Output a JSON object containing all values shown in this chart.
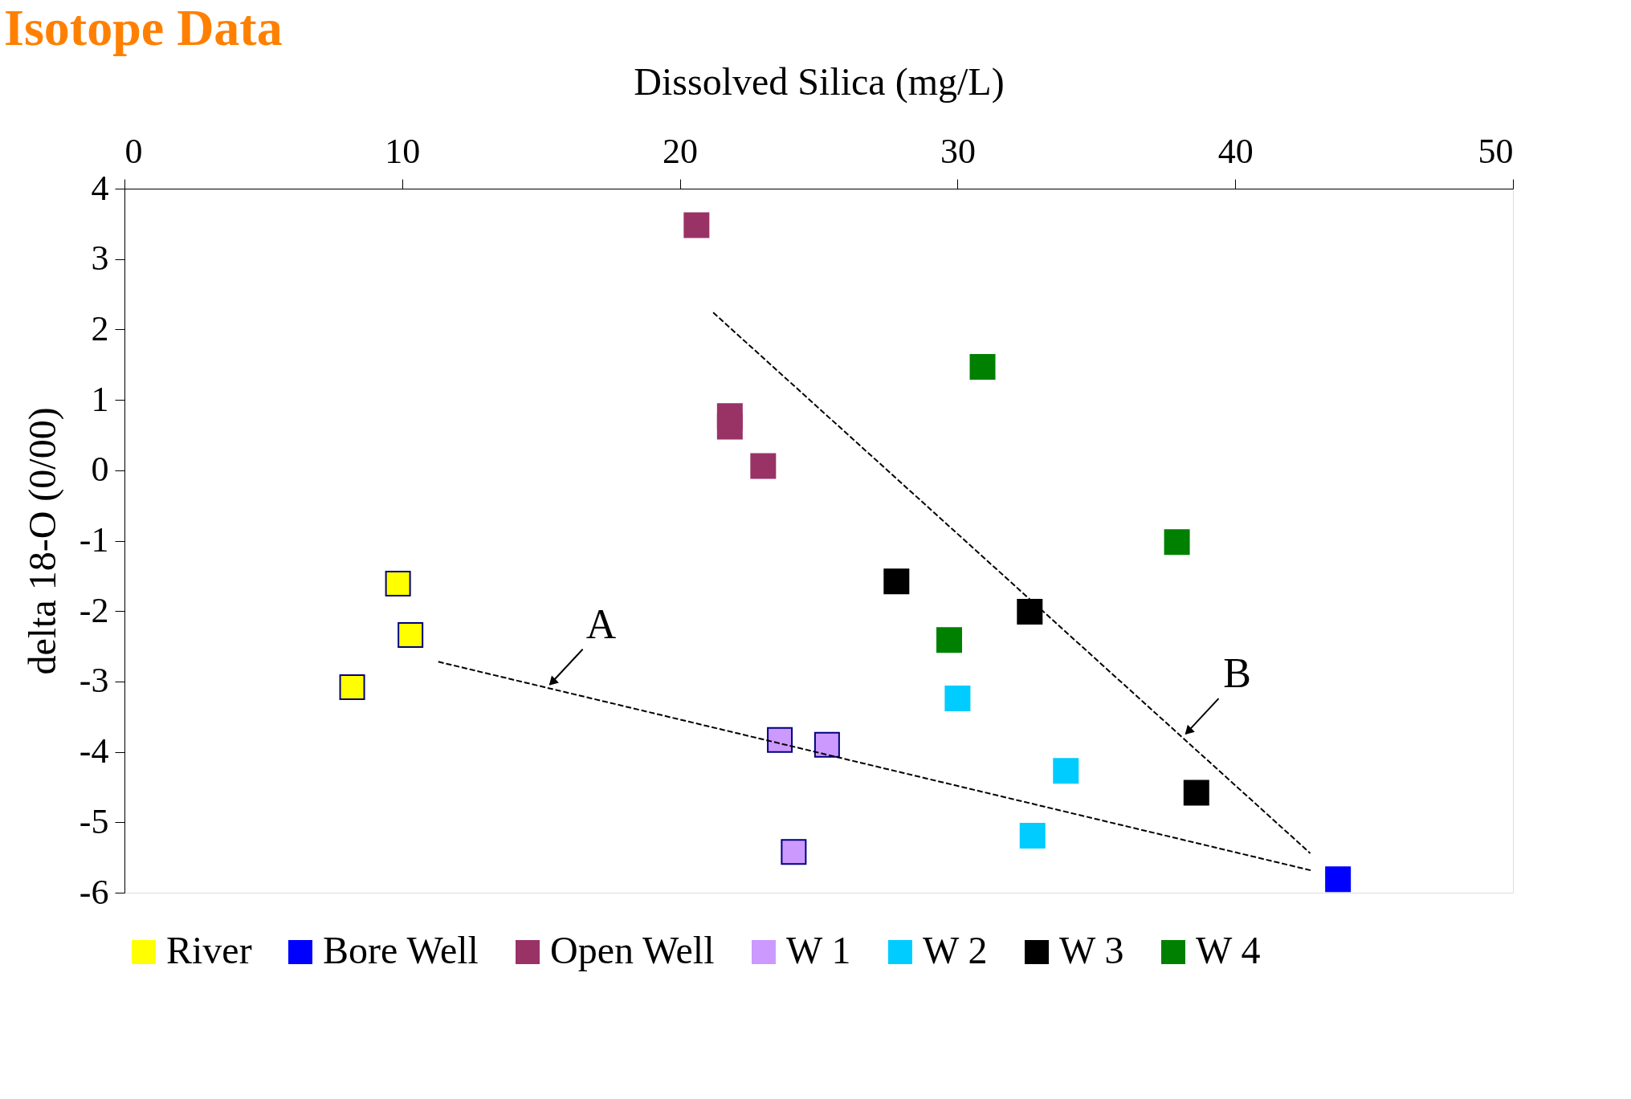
{
  "chart_data": {
    "type": "scatter",
    "title": "Isotope Data",
    "xlabel": "Dissolved Silica (mg/L)",
    "ylabel": "delta 18-O (0/00)",
    "xlim": [
      0,
      50
    ],
    "xticks": [
      0,
      10,
      20,
      30,
      40,
      50
    ],
    "ylim": [
      -6,
      4
    ],
    "yticks": [
      -6,
      -5,
      -4,
      -3,
      -2,
      -1,
      0,
      1,
      2,
      3,
      4
    ],
    "grid": false,
    "legend": "bottom",
    "marker": "square",
    "series": [
      {
        "name": "River",
        "color": "#ffff00",
        "x": [
          9.85,
          10.3,
          8.2
        ],
        "values": [
          -1.61,
          -2.34,
          -3.08
        ]
      },
      {
        "name": "Bore Well",
        "color": "#0000ff",
        "x": [
          43.7
        ],
        "values": [
          -5.81
        ]
      },
      {
        "name": "Open Well",
        "color": "#993366",
        "x": [
          20.6,
          21.8,
          21.8,
          23.0
        ],
        "values": [
          3.48,
          0.77,
          0.62,
          0.06
        ]
      },
      {
        "name": "W 1",
        "color": "#cc99ff",
        "x": [
          23.6,
          25.3,
          24.1
        ],
        "values": [
          -3.83,
          -3.9,
          -5.42
        ]
      },
      {
        "name": "W 2",
        "color": "#00ccff",
        "x": [
          30.0,
          33.9,
          32.7
        ],
        "values": [
          -3.24,
          -4.27,
          -5.19
        ]
      },
      {
        "name": "W 3",
        "color": "#000000",
        "x": [
          27.8,
          32.6,
          38.6
        ],
        "values": [
          -1.58,
          -2.01,
          -4.58
        ]
      },
      {
        "name": "W 4",
        "color": "#008000",
        "x": [
          30.9,
          37.9,
          29.7
        ],
        "values": [
          1.47,
          -1.02,
          -2.41
        ]
      },
      {
        "type": "line",
        "color": "#000000",
        "line_style": "dashed",
        "marker": "none",
        "x": [
          11.3,
          42.8
        ],
        "values": [
          -2.72,
          -5.69
        ]
      },
      {
        "type": "line",
        "color": "#000000",
        "line_style": "dashed",
        "marker": "none",
        "x": [
          21.2,
          42.7
        ],
        "values": [
          2.24,
          -5.44
        ]
      }
    ],
    "annotations": [
      {
        "text": "A",
        "x": 15.2,
        "y": -3.09
      },
      {
        "text": "B",
        "x": 38.1,
        "y": -3.79
      }
    ]
  }
}
